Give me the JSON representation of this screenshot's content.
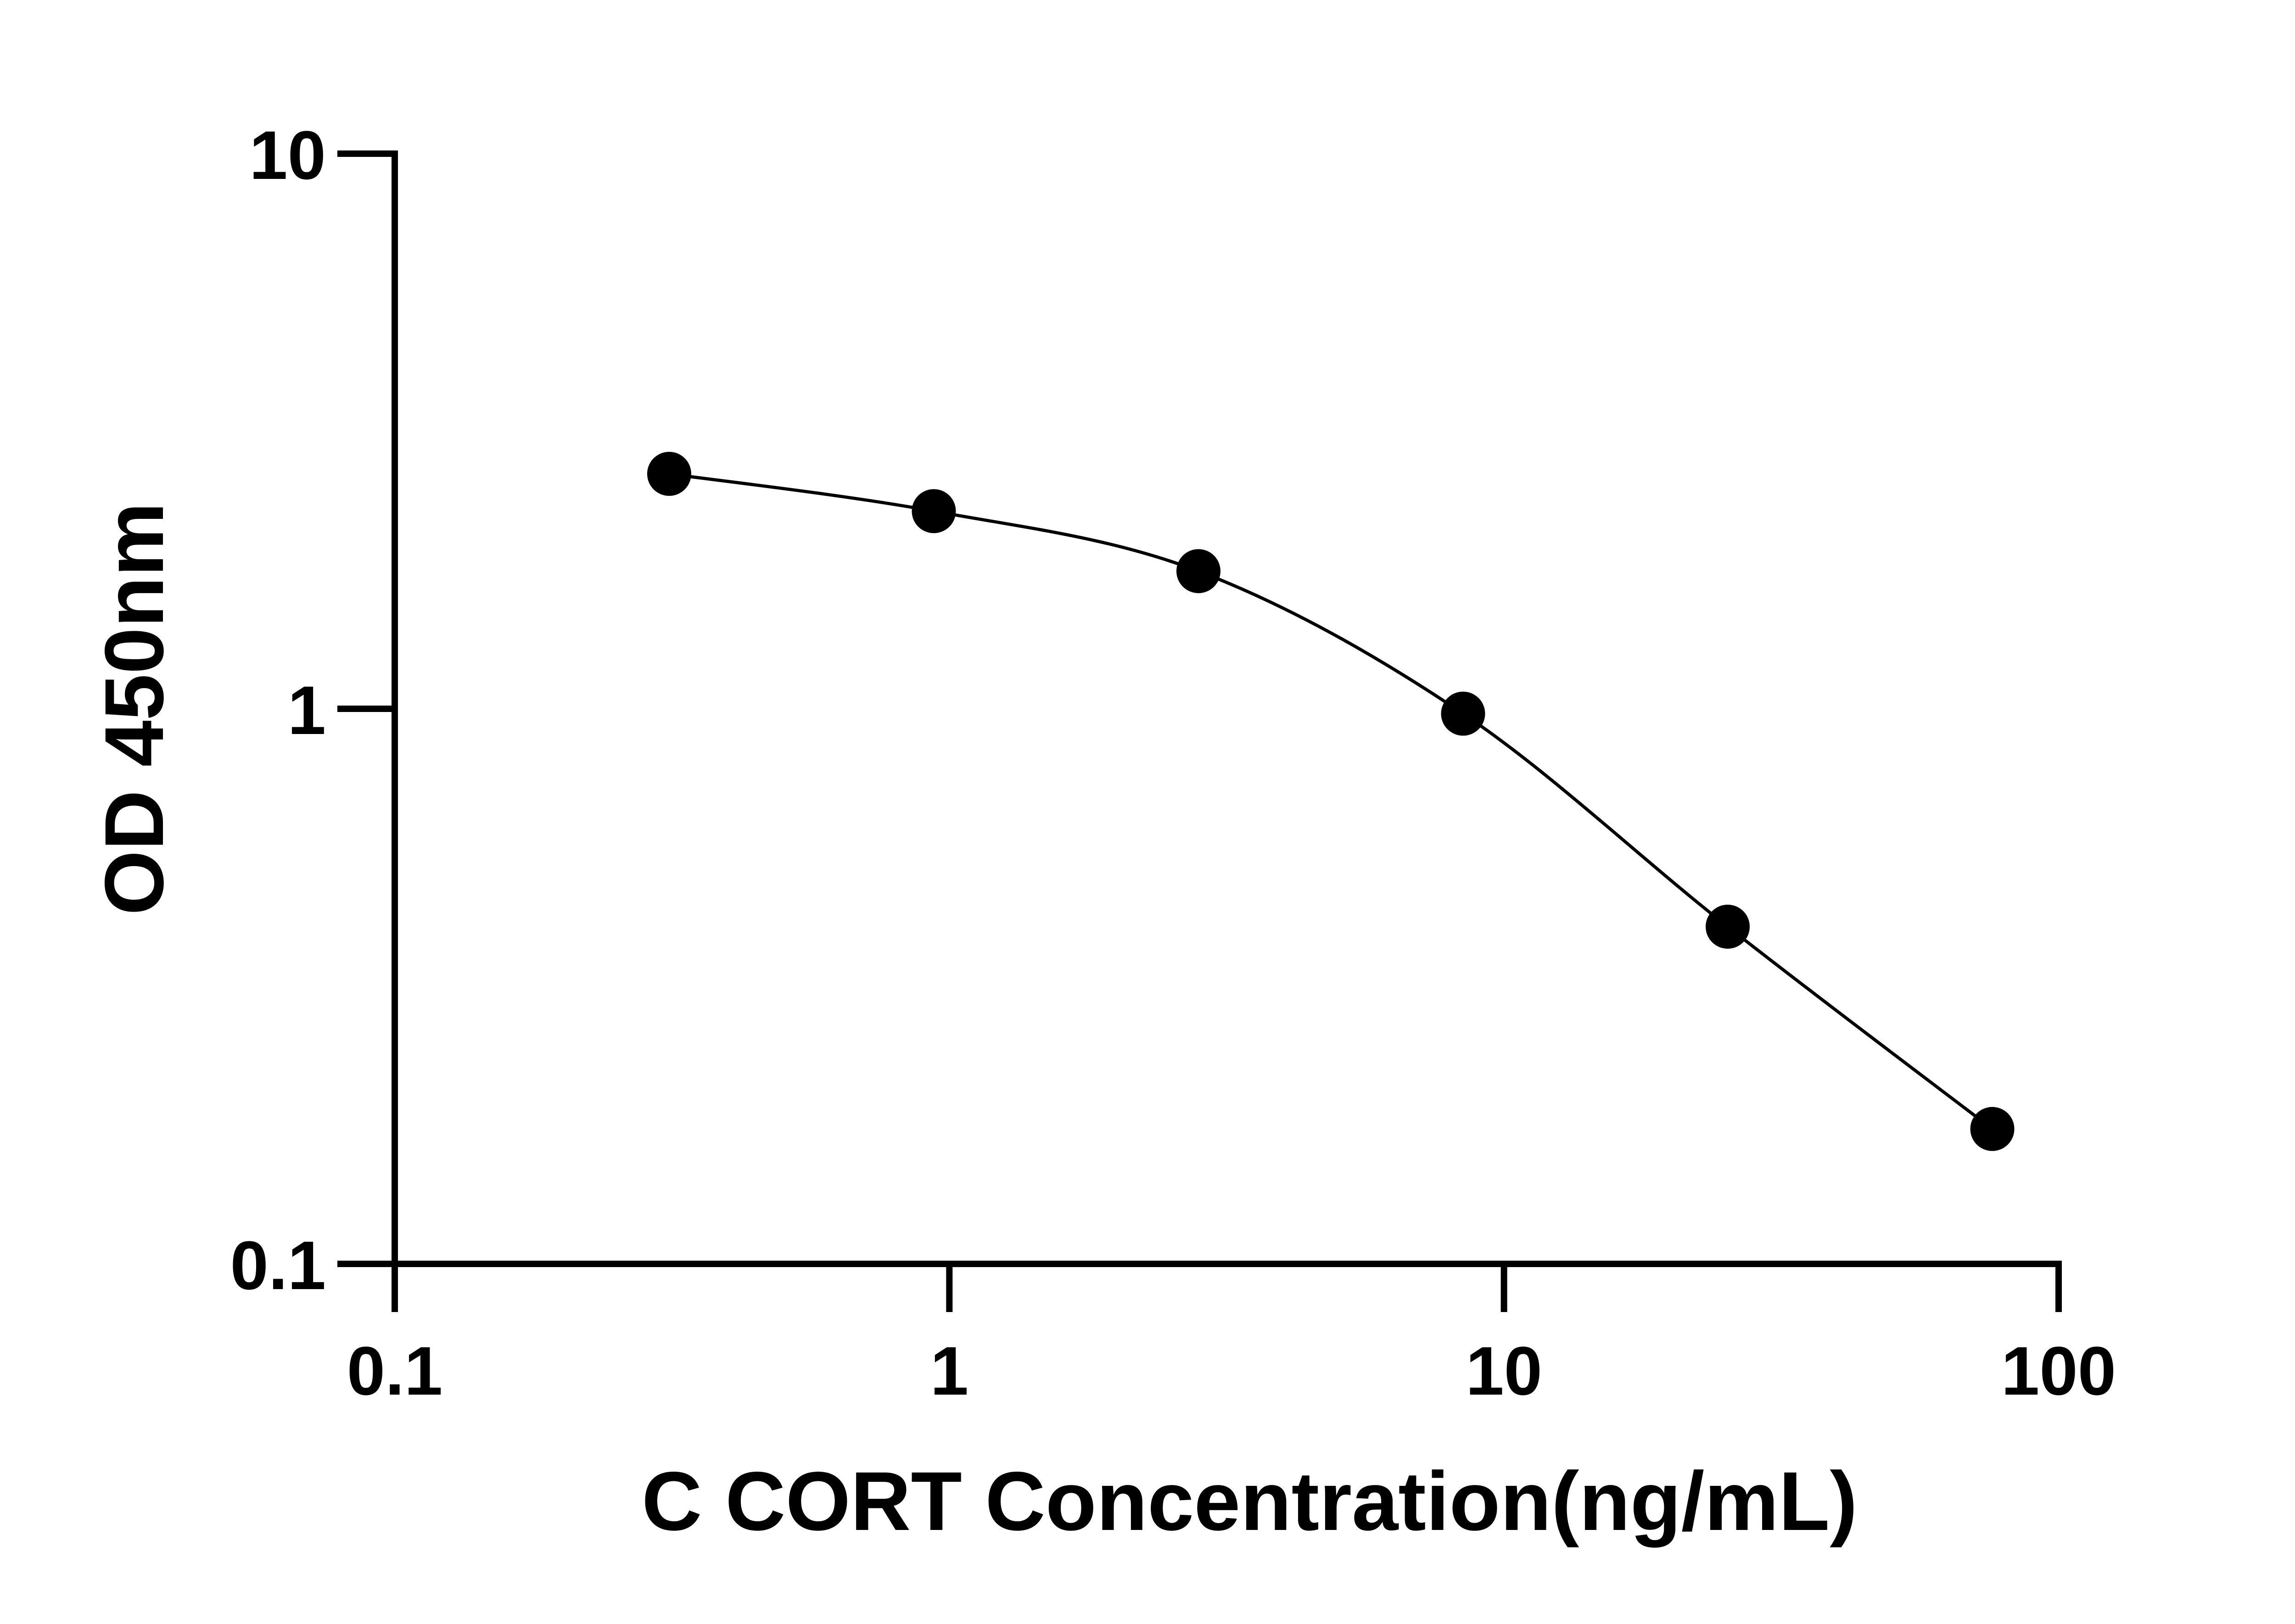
{
  "chart_data": {
    "type": "scatter",
    "xlabel": "C CORT Concentration(ng/mL)",
    "ylabel": "OD 450nm",
    "x_scale": "log",
    "y_scale": "log",
    "xlim": [
      0.1,
      100
    ],
    "ylim": [
      0.1,
      10
    ],
    "x_ticks": [
      0.1,
      1,
      10,
      100
    ],
    "x_tick_labels": [
      "0.1",
      "1",
      "10",
      "100"
    ],
    "y_ticks": [
      0.1,
      1,
      10
    ],
    "y_tick_labels": [
      "0.1",
      "1",
      "10"
    ],
    "grid": false,
    "series": [
      {
        "points": [
          {
            "x": 0.3125,
            "y": 2.65
          },
          {
            "x": 0.9375,
            "y": 2.27
          },
          {
            "x": 2.8125,
            "y": 1.77
          },
          {
            "x": 8.4375,
            "y": 0.98
          },
          {
            "x": 25.3125,
            "y": 0.405
          },
          {
            "x": 75.9375,
            "y": 0.175
          }
        ],
        "fit": "4PL curve",
        "color": "#000000"
      }
    ]
  }
}
